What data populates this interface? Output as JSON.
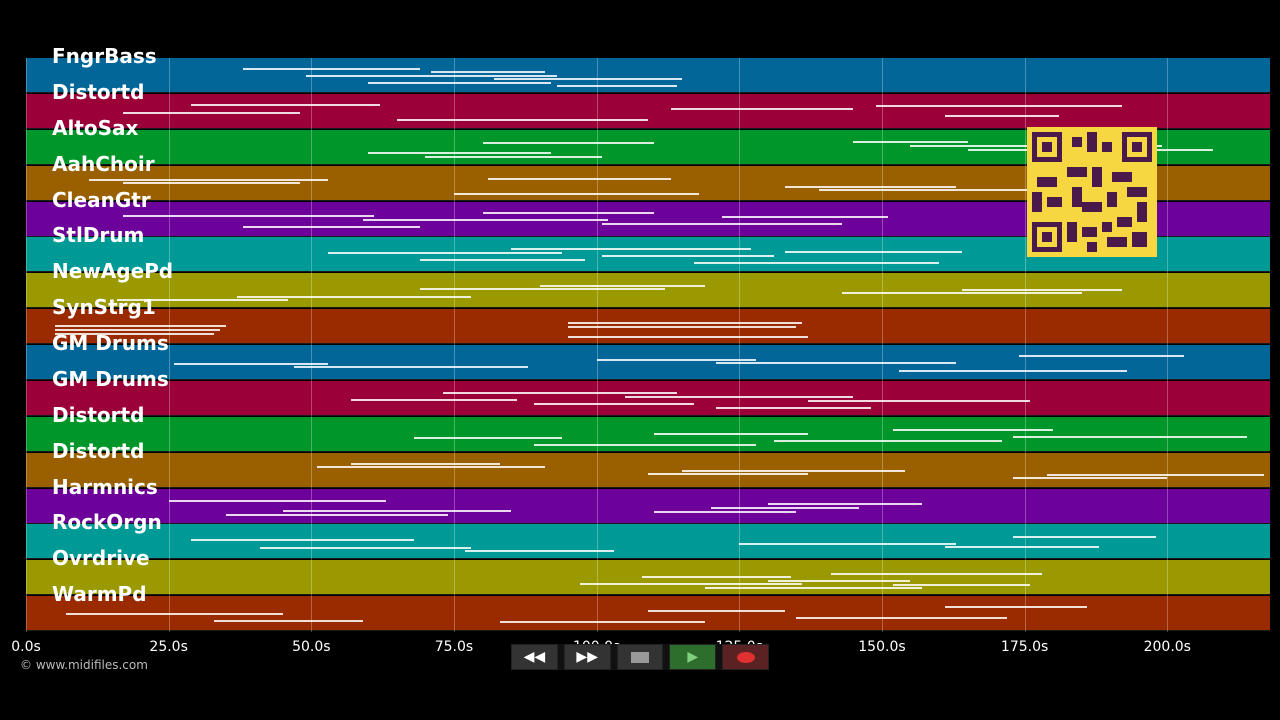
{
  "tracks": [
    {
      "label": "FngrBass",
      "color": "#026699"
    },
    {
      "label": "Distortd",
      "color": "#9b0038"
    },
    {
      "label": "AltoSax",
      "color": "#00962a"
    },
    {
      "label": "AahChoir",
      "color": "#9a6000"
    },
    {
      "label": "CleanGtr",
      "color": "#6c0299"
    },
    {
      "label": "StlDrum",
      "color": "#009a96"
    },
    {
      "label": "NewAgePd",
      "color": "#9a9a00"
    },
    {
      "label": "SynStrg1",
      "color": "#9a2a00"
    },
    {
      "label": "GM Drums",
      "color": "#026699"
    },
    {
      "label": "GM Drums",
      "color": "#9b0038"
    },
    {
      "label": "Distortd",
      "color": "#00962a"
    },
    {
      "label": "Distortd",
      "color": "#9a6000"
    },
    {
      "label": "Harmnics",
      "color": "#6c0299"
    },
    {
      "label": "RockOrgn",
      "color": "#009a96"
    },
    {
      "label": "Ovrdrive",
      "color": "#9a9a00"
    },
    {
      "label": "WarmPd",
      "color": "#9a2a00"
    }
  ],
  "timeline": {
    "ticks": [
      "0.0s",
      "25.0s",
      "50.0s",
      "75.0s",
      "100.0s",
      "125.0s",
      "150.0s",
      "175.0s",
      "200.0s"
    ],
    "tick_values": [
      0,
      25,
      50,
      75,
      100,
      125,
      150,
      175,
      200
    ],
    "range_seconds": [
      0,
      218
    ]
  },
  "transport": {
    "rewind_icon": "rewind-icon",
    "forward_icon": "fast-forward-icon",
    "stop_icon": "stop-icon",
    "play_icon": "play-icon",
    "record_icon": "record-icon"
  },
  "copyright": "© www.midifiles.com",
  "qr_code": {
    "icon": "qr-code-icon",
    "color": "#f6d742"
  }
}
